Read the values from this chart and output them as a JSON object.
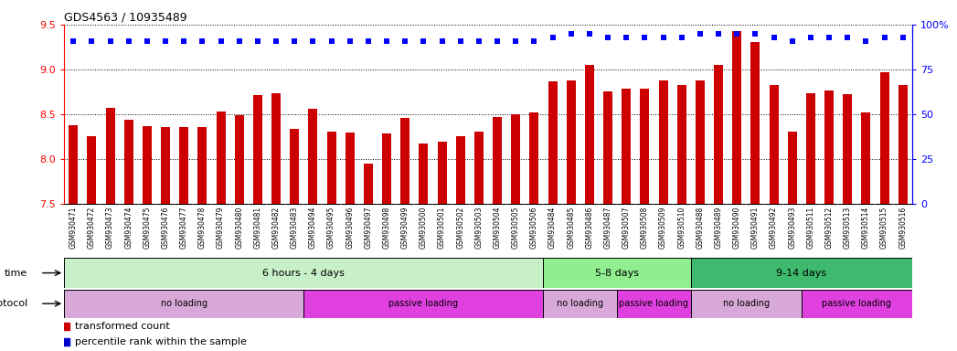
{
  "title": "GDS4563 / 10935489",
  "samples": [
    "GSM930471",
    "GSM930472",
    "GSM930473",
    "GSM930474",
    "GSM930475",
    "GSM930476",
    "GSM930477",
    "GSM930478",
    "GSM930479",
    "GSM930480",
    "GSM930481",
    "GSM930482",
    "GSM930483",
    "GSM930494",
    "GSM930495",
    "GSM930496",
    "GSM930497",
    "GSM930498",
    "GSM930499",
    "GSM930500",
    "GSM930501",
    "GSM930502",
    "GSM930503",
    "GSM930504",
    "GSM930505",
    "GSM930506",
    "GSM930484",
    "GSM930485",
    "GSM930486",
    "GSM930487",
    "GSM930507",
    "GSM930508",
    "GSM930509",
    "GSM930510",
    "GSM930488",
    "GSM930489",
    "GSM930490",
    "GSM930491",
    "GSM930492",
    "GSM930493",
    "GSM930511",
    "GSM930512",
    "GSM930513",
    "GSM930514",
    "GSM930515",
    "GSM930516"
  ],
  "bar_values": [
    8.38,
    8.25,
    8.57,
    8.44,
    8.37,
    8.35,
    8.36,
    8.35,
    8.53,
    8.49,
    8.71,
    8.73,
    8.33,
    8.56,
    8.3,
    8.29,
    7.95,
    8.28,
    8.46,
    8.17,
    8.19,
    8.25,
    8.3,
    8.47,
    8.5,
    8.52,
    8.87,
    8.88,
    9.05,
    8.75,
    8.78,
    8.78,
    8.88,
    8.82,
    8.88,
    9.05,
    9.43,
    9.3,
    8.82,
    8.3,
    8.73,
    8.76,
    8.72,
    8.52,
    8.97,
    8.82
  ],
  "percentile_values": [
    91,
    91,
    91,
    91,
    91,
    91,
    91,
    91,
    91,
    91,
    91,
    91,
    91,
    91,
    91,
    91,
    91,
    91,
    91,
    91,
    91,
    91,
    91,
    91,
    91,
    91,
    93,
    95,
    95,
    93,
    93,
    93,
    93,
    93,
    95,
    95,
    95,
    95,
    93,
    91,
    93,
    93,
    93,
    91,
    93,
    93
  ],
  "ylim_left": [
    7.5,
    9.5
  ],
  "ylim_right": [
    0,
    100
  ],
  "yticks_left": [
    7.5,
    8.0,
    8.5,
    9.0,
    9.5
  ],
  "yticks_right": [
    0,
    25,
    50,
    75,
    100
  ],
  "bar_color": "#cc0000",
  "percentile_color": "#0000cc",
  "plot_bg_color": "#ffffff",
  "xtick_bg_color": "#c8c8c8",
  "time_colors": [
    "#c8f0c8",
    "#90ee90",
    "#3dba6d"
  ],
  "time_groups": [
    {
      "label": "6 hours - 4 days",
      "start": 0,
      "end": 26
    },
    {
      "label": "5-8 days",
      "start": 26,
      "end": 34
    },
    {
      "label": "9-14 days",
      "start": 34,
      "end": 46
    }
  ],
  "protocol_groups": [
    {
      "label": "no loading",
      "start": 0,
      "end": 13,
      "type": "no"
    },
    {
      "label": "passive loading",
      "start": 13,
      "end": 26,
      "type": "passive"
    },
    {
      "label": "no loading",
      "start": 26,
      "end": 30,
      "type": "no"
    },
    {
      "label": "passive loading",
      "start": 30,
      "end": 34,
      "type": "passive"
    },
    {
      "label": "no loading",
      "start": 34,
      "end": 40,
      "type": "no"
    },
    {
      "label": "passive loading",
      "start": 40,
      "end": 46,
      "type": "passive"
    }
  ],
  "proto_no_color": "#d8a8d8",
  "proto_passive_color": "#e040e0",
  "legend_bar_label": "transformed count",
  "legend_percentile_label": "percentile rank within the sample"
}
